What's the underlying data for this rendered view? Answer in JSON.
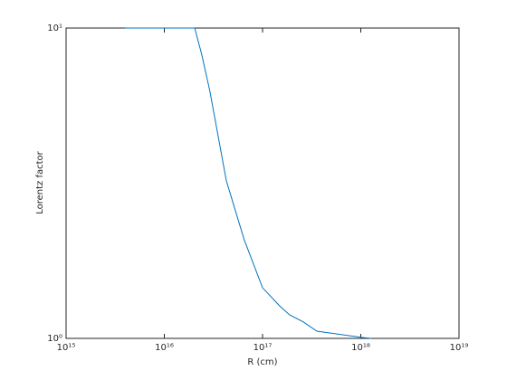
{
  "chart_data": {
    "type": "line",
    "xlabel": "R (cm)",
    "ylabel": "Lorentz factor",
    "xscale": "log",
    "yscale": "log",
    "xlim": [
      1000000000000000.0,
      1e+19
    ],
    "ylim": [
      1,
      10
    ],
    "xticks": [
      {
        "value": 1000000000000000.0,
        "label": "10¹⁵"
      },
      {
        "value": 1e+16,
        "label": "10¹⁶"
      },
      {
        "value": 1e+17,
        "label": "10¹⁷"
      },
      {
        "value": 1e+18,
        "label": "10¹⁸"
      },
      {
        "value": 1e+19,
        "label": "10¹⁹"
      }
    ],
    "yticks": [
      {
        "value": 1,
        "label": "10⁰"
      },
      {
        "value": 10,
        "label": "10¹"
      }
    ],
    "series": [
      {
        "color": "#0072bd",
        "x": [
          3970000000000000.0,
          2.04e+16,
          2.4e+16,
          2.9e+16,
          4.28e+16,
          6.5e+16,
          1e+17,
          1.5e+17,
          1.89e+17,
          2.6e+17,
          3.57e+17,
          1.03e+18,
          1.28e+18
        ],
        "values": [
          10,
          10,
          8.23,
          6.29,
          3.22,
          2.08,
          1.456,
          1.27,
          1.19,
          1.13,
          1.055,
          1.007,
          1
        ]
      }
    ]
  }
}
